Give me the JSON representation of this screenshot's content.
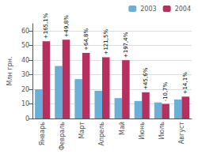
{
  "chart_data": {
    "type": "bar",
    "ylabel": "Млн грн.",
    "categories": [
      "Январь",
      "Февраль",
      "Март",
      "Апрель",
      "Май",
      "Июнь",
      "Июль",
      "Август"
    ],
    "series": [
      {
        "name": "2003",
        "color": "#6baed6",
        "values": [
          20,
          36,
          27,
          19,
          14,
          12,
          11,
          13
        ]
      },
      {
        "name": "2004",
        "color": "#b5305e",
        "values": [
          53,
          54,
          45,
          42,
          40,
          18,
          10,
          15
        ]
      }
    ],
    "annotations": [
      {
        "series": "2004",
        "category": "Январь",
        "text": "+165,1%"
      },
      {
        "series": "2004",
        "category": "Февраль",
        "text": "+49,8%"
      },
      {
        "series": "2004",
        "category": "Март",
        "text": "+64,8%"
      },
      {
        "series": "2004",
        "category": "Апрель",
        "text": "+121,5%"
      },
      {
        "series": "2004",
        "category": "Май",
        "text": "+197,4%"
      },
      {
        "series": "2004",
        "category": "Июнь",
        "text": "+45,6%"
      },
      {
        "series": "2004",
        "category": "Июль",
        "text": "-10,7%"
      },
      {
        "series": "2004",
        "category": "Август",
        "text": "+14,1%"
      }
    ],
    "ylim": [
      0,
      65
    ],
    "yticks": [
      0,
      10,
      20,
      30,
      40,
      50,
      60
    ],
    "grid": true,
    "legend": "upper right"
  }
}
